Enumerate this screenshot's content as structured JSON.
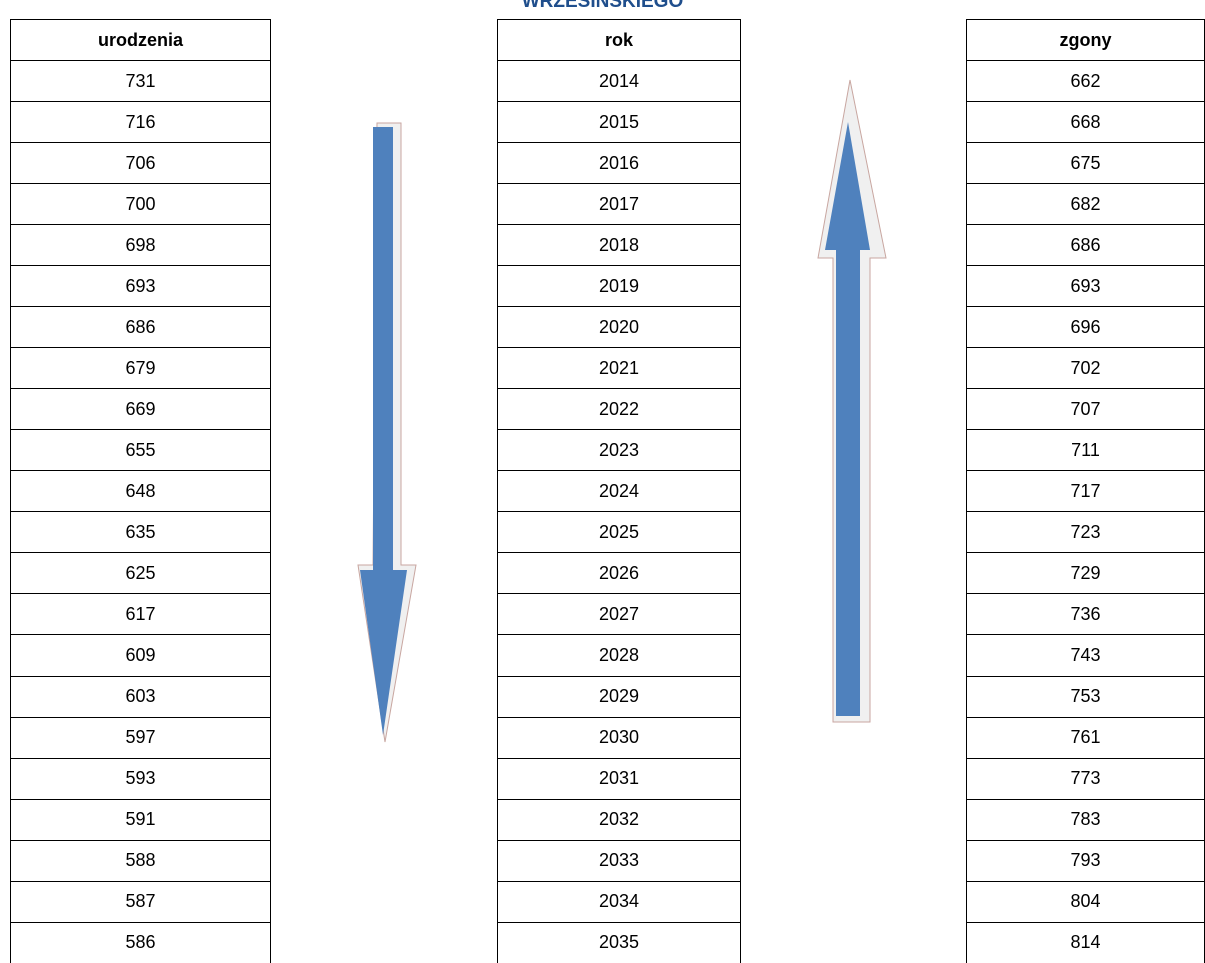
{
  "title": "WRZESIŃSKIEGO",
  "tables": [
    {
      "header": "urodzenia",
      "rows": [
        "731",
        "716",
        "706",
        "700",
        "698",
        "693",
        "686",
        "679",
        "669",
        "655",
        "648",
        "635",
        "625",
        "617",
        "609",
        "603",
        "597",
        "593",
        "591",
        "588",
        "587",
        "586"
      ]
    },
    {
      "header": "rok",
      "rows": [
        "2014",
        "2015",
        "2016",
        "2017",
        "2018",
        "2019",
        "2020",
        "2021",
        "2022",
        "2023",
        "2024",
        "2025",
        "2026",
        "2027",
        "2028",
        "2029",
        "2030",
        "2031",
        "2032",
        "2033",
        "2034",
        "2035"
      ]
    },
    {
      "header": "zgony",
      "rows": [
        "662",
        "668",
        "675",
        "682",
        "686",
        "693",
        "696",
        "702",
        "707",
        "711",
        "717",
        "723",
        "729",
        "736",
        "743",
        "753",
        "761",
        "773",
        "783",
        "793",
        "804",
        "814"
      ]
    }
  ]
}
